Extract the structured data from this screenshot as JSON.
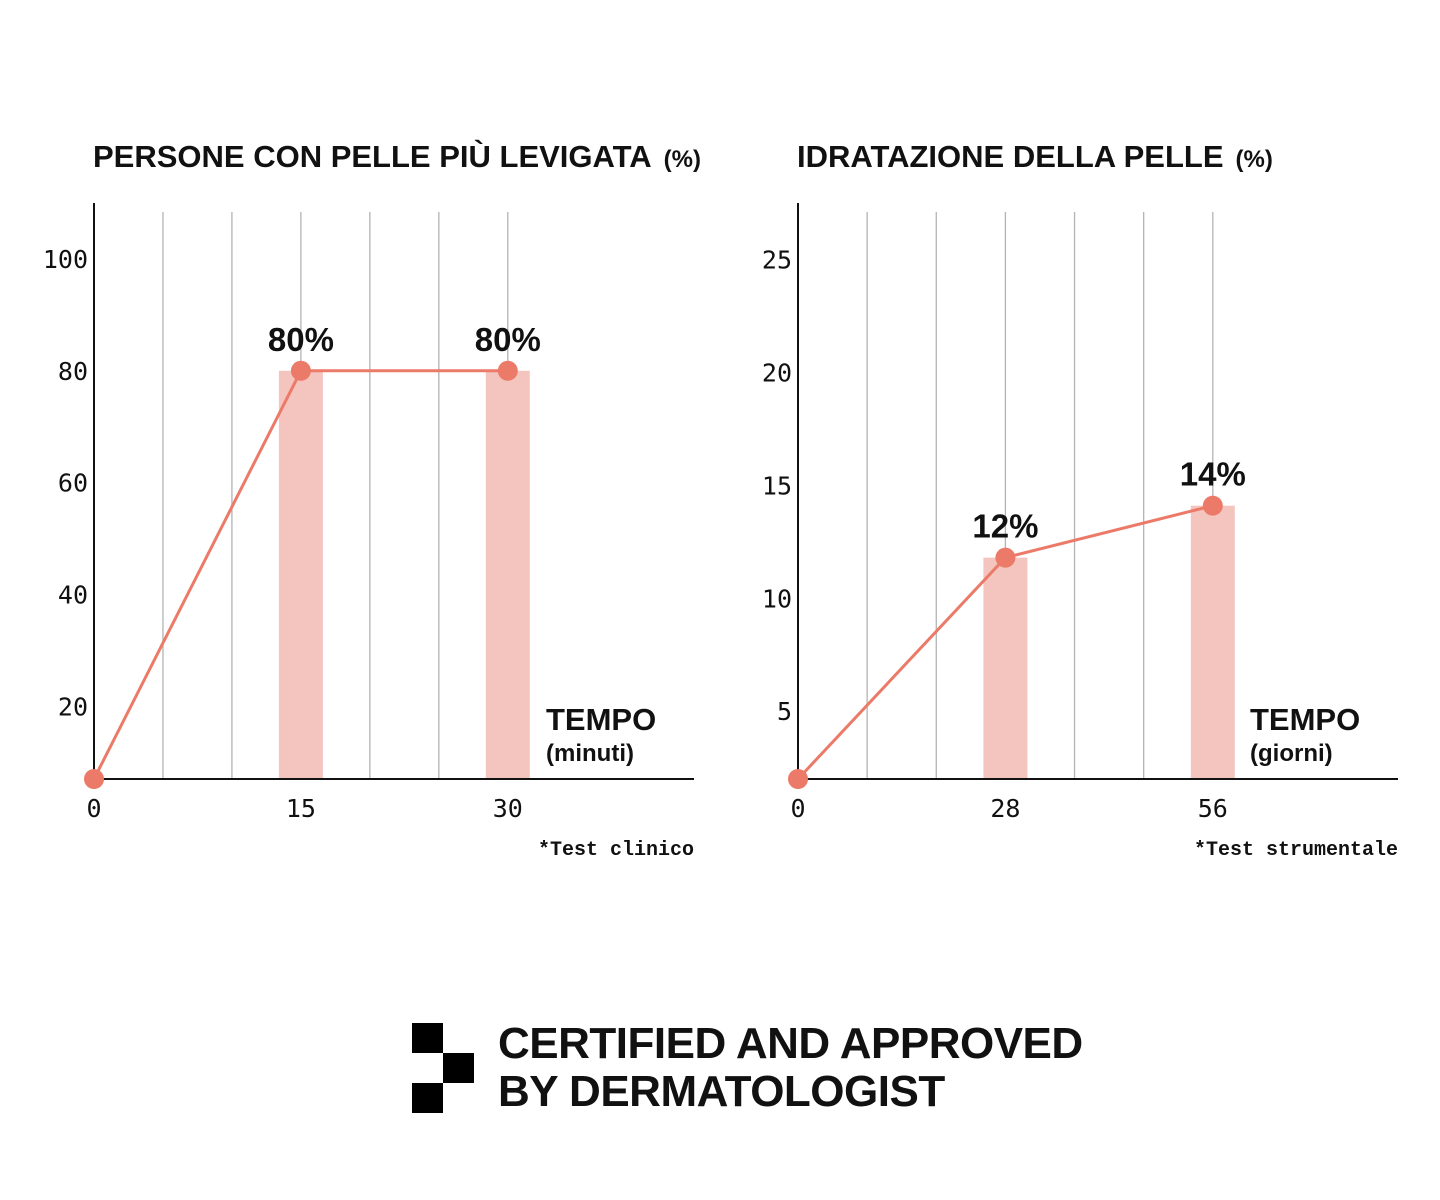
{
  "chart_data": [
    {
      "type": "bar",
      "title": "PERSONE CON PELLE PIÙ LEVIGATA",
      "title_unit": "(%)",
      "x_ticks": [
        "0",
        "15",
        "30"
      ],
      "y_ticks": [
        "20",
        "40",
        "60",
        "80",
        "100"
      ],
      "ylim": [
        7,
        110
      ],
      "xlim": [
        0,
        43.5
      ],
      "grid": "vertical",
      "bars": [
        {
          "x": 15,
          "value": 80,
          "label": "80%"
        },
        {
          "x": 30,
          "value": 80,
          "label": "80%"
        }
      ],
      "line_points": [
        {
          "x": 0,
          "y": 7
        },
        {
          "x": 15,
          "y": 80
        },
        {
          "x": 30,
          "y": 80
        }
      ],
      "xlabel": "TEMPO",
      "xlabel_unit": "(minuti)",
      "footnote": "*Test clinico",
      "colors": {
        "bar": "#f4c5bf",
        "line": "#ec7a68",
        "point": "#ec7a68",
        "grid": "#b3b3b3",
        "axis": "#111111"
      }
    },
    {
      "type": "bar",
      "title": "IDRATAZIONE DELLA PELLE",
      "title_unit": "(%)",
      "x_ticks": [
        "0",
        "28",
        "56"
      ],
      "y_ticks": [
        "5",
        "10",
        "15",
        "20",
        "25"
      ],
      "ylim": [
        2,
        27.5
      ],
      "xlim": [
        0,
        81
      ],
      "grid": "vertical",
      "bars": [
        {
          "x": 28,
          "value": 11.8,
          "label": "12%"
        },
        {
          "x": 56,
          "value": 14.1,
          "label": "14%"
        }
      ],
      "line_points": [
        {
          "x": 0,
          "y": 2
        },
        {
          "x": 28,
          "y": 11.8
        },
        {
          "x": 56,
          "y": 14.1
        }
      ],
      "xlabel": "TEMPO",
      "xlabel_unit": "(giorni)",
      "footnote": "*Test strumentale",
      "colors": {
        "bar": "#f4c5bf",
        "line": "#ec7a68",
        "point": "#ec7a68",
        "grid": "#b3b3b3",
        "axis": "#111111"
      }
    }
  ],
  "badge": {
    "line1": "CERTIFIED AND APPROVED",
    "line2": "BY DERMATOLOGIST",
    "icon": "checker-squares-icon"
  }
}
